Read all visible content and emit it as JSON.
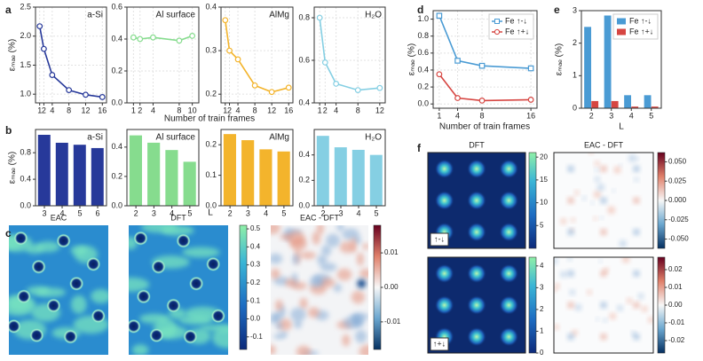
{
  "chart_data": [
    {
      "type": "line",
      "panel": "a",
      "title": "a-Si",
      "ylabel": "εₘₐₑ (%)",
      "x": [
        1,
        2,
        4,
        8,
        12,
        16
      ],
      "values": [
        2.17,
        1.78,
        1.33,
        1.07,
        0.99,
        0.95
      ],
      "color": "#27399a",
      "xlim": [
        0,
        17
      ],
      "xticks": [
        1,
        2,
        4,
        8,
        12,
        16
      ],
      "ylim": [
        0.85,
        2.5
      ],
      "yticks": [
        {
          "value": 1,
          "label": "1.0"
        },
        1.5,
        {
          "value": 2,
          "label": "2.0"
        },
        2.5
      ],
      "grid": true
    },
    {
      "type": "line",
      "title": "Al surface",
      "xlabel": "Number of train frames",
      "x": [
        1,
        2,
        4,
        8,
        10
      ],
      "values": [
        0.41,
        0.4,
        0.41,
        0.39,
        0.42
      ],
      "color": "#86dc8e",
      "xlim": [
        0,
        11
      ],
      "xticks": [
        1,
        2,
        4,
        8,
        10
      ],
      "ylim": [
        0,
        0.6
      ],
      "yticks": [
        {
          "value": 0,
          "label": "0.0"
        },
        0.2,
        0.4,
        0.6
      ],
      "grid": true
    },
    {
      "type": "line",
      "title": "AlMg",
      "x": [
        1,
        2,
        4,
        8,
        12,
        16
      ],
      "values": [
        0.37,
        0.3,
        0.28,
        0.22,
        0.205,
        0.215
      ],
      "color": "#f3b42c",
      "xlim": [
        0,
        17
      ],
      "xticks": [
        1,
        2,
        4,
        8,
        12,
        16
      ],
      "ylim": [
        0.18,
        0.4
      ],
      "yticks": [
        0.2,
        0.3,
        0.4
      ],
      "grid": true
    },
    {
      "type": "line",
      "title": "H₂O",
      "x": [
        1,
        2,
        4,
        8,
        12
      ],
      "values": [
        0.8,
        0.59,
        0.49,
        0.46,
        0.47
      ],
      "color": "#85cfe3",
      "xlim": [
        0,
        13
      ],
      "xticks": [
        1,
        2,
        4,
        8,
        12
      ],
      "ylim": [
        0.4,
        0.85
      ],
      "yticks": [
        0.4,
        0.6,
        0.8
      ],
      "grid": true
    },
    {
      "type": "bar",
      "panel": "b",
      "title": "a-Si",
      "ylabel": "εₘₐₑ (%)",
      "categories": [
        "3",
        "4",
        "5",
        "6"
      ],
      "values": [
        1.07,
        0.95,
        0.92,
        0.87
      ],
      "color": "#27399a",
      "ylim": [
        0,
        1.15
      ],
      "yticks": [
        {
          "value": 0,
          "label": "0.0"
        },
        0.4,
        0.8
      ]
    },
    {
      "type": "bar",
      "title": "Al surface",
      "xlabel": "L",
      "categories": [
        "2",
        "3",
        "4",
        "5"
      ],
      "values": [
        0.48,
        0.43,
        0.38,
        0.3
      ],
      "color": "#86dc8e",
      "ylim": [
        0,
        0.52
      ],
      "yticks": [
        {
          "value": 0,
          "label": "0.0"
        },
        0.2,
        0.4
      ]
    },
    {
      "type": "bar",
      "title": "AlMg",
      "categories": [
        "2",
        "3",
        "4",
        "5"
      ],
      "values": [
        0.235,
        0.215,
        0.185,
        0.178
      ],
      "color": "#f3b42c",
      "ylim": [
        0,
        0.25
      ],
      "yticks": [
        {
          "value": 0,
          "label": "0.0"
        },
        0.1,
        0.2
      ]
    },
    {
      "type": "bar",
      "title": "H₂O",
      "categories": [
        "2",
        "3",
        "4",
        "5"
      ],
      "values": [
        0.55,
        0.46,
        0.44,
        0.4
      ],
      "color": "#85cfe3",
      "ylim": [
        0,
        0.6
      ],
      "yticks": [
        {
          "value": 0,
          "label": "0.0"
        },
        0.2,
        0.4
      ]
    },
    {
      "type": "heatmap",
      "panel": "c",
      "title": "EAC",
      "style": "field"
    },
    {
      "type": "heatmap",
      "title": "DFT",
      "style": "field",
      "colormap": "viridis",
      "clim": [
        -0.17,
        0.52
      ],
      "cticks": [
        0.5,
        0.4,
        0.3,
        0.2,
        0.1,
        {
          "value": 0,
          "label": "0.0"
        },
        {
          "value": -0.1,
          "label": "-0.1"
        }
      ]
    },
    {
      "type": "heatmap",
      "title": "EAC - DFT",
      "style": "diff",
      "colormap": "RdBu",
      "clim": [
        -0.018,
        0.018
      ],
      "cticks": [
        0.01,
        {
          "value": 0,
          "label": "0.00"
        },
        {
          "value": -0.01,
          "label": "-0.01"
        }
      ]
    },
    {
      "type": "line",
      "panel": "d",
      "ylabel": "εₘₐₑ (%)",
      "xlabel": "Number of train frames",
      "x": [
        1,
        4,
        8,
        16
      ],
      "series": [
        {
          "name": "Fe ↑-↓",
          "color": "#4a9bd4",
          "marker": "square",
          "values": [
            1.04,
            0.51,
            0.45,
            0.42
          ]
        },
        {
          "name": "Fe ↑+↓",
          "color": "#d64541",
          "marker": "circle",
          "values": [
            0.35,
            0.07,
            0.04,
            0.05
          ]
        }
      ],
      "xlim": [
        0,
        17
      ],
      "xticks": [
        1,
        4,
        8,
        16
      ],
      "ylim": [
        -0.05,
        1.1
      ],
      "yticks": [
        {
          "value": 0,
          "label": "0.0"
        },
        0.2,
        0.4,
        0.6,
        0.8,
        {
          "value": 1,
          "label": "1.0"
        }
      ],
      "grid": true,
      "legend": "upper right"
    },
    {
      "type": "bar",
      "panel": "e",
      "ylabel": "εₘₐₑ (%)",
      "xlabel": "L",
      "categories": [
        "2",
        "3",
        "4",
        "5"
      ],
      "series": [
        {
          "name": "Fe ↑-↓",
          "color": "#4a9bd4",
          "values": [
            2.5,
            2.85,
            0.4,
            0.4
          ]
        },
        {
          "name": "Fe ↑+↓",
          "color": "#d64541",
          "values": [
            0.22,
            0.22,
            0.05,
            0.05
          ]
        }
      ],
      "ylim": [
        0,
        3
      ],
      "yticks": [
        0,
        1,
        2,
        3
      ],
      "legend": "upper right"
    },
    {
      "type": "heatmap",
      "panel": "f",
      "title": "DFT",
      "corner": "↑-↓",
      "style": "spots",
      "colormap": "viridis",
      "clim": [
        0,
        21
      ],
      "cticks": [
        20,
        15,
        10,
        5
      ]
    },
    {
      "type": "heatmap",
      "title": "EAC - DFT",
      "style": "sparse",
      "colormap": "RdBu",
      "clim": [
        -0.062,
        0.062
      ],
      "cticks": [
        {
          "value": 0.05,
          "label": "0.050"
        },
        {
          "value": 0.025,
          "label": "0.025"
        },
        {
          "value": 0,
          "label": "0.000"
        },
        {
          "value": -0.025,
          "label": "-0.025"
        },
        {
          "value": -0.05,
          "label": "-0.050"
        }
      ]
    },
    {
      "type": "heatmap",
      "corner": "↑+↓",
      "style": "spots",
      "colormap": "viridis",
      "clim": [
        0,
        4.4
      ],
      "cticks": [
        4,
        3,
        2,
        1,
        0
      ]
    },
    {
      "type": "heatmap",
      "style": "sparse",
      "colormap": "RdBu",
      "clim": [
        -0.027,
        0.027
      ],
      "cticks": [
        0.02,
        0.01,
        {
          "value": 0,
          "label": "0.00"
        },
        {
          "value": -0.01,
          "label": "-0.01"
        },
        {
          "value": -0.02,
          "label": "-0.02"
        }
      ]
    }
  ]
}
